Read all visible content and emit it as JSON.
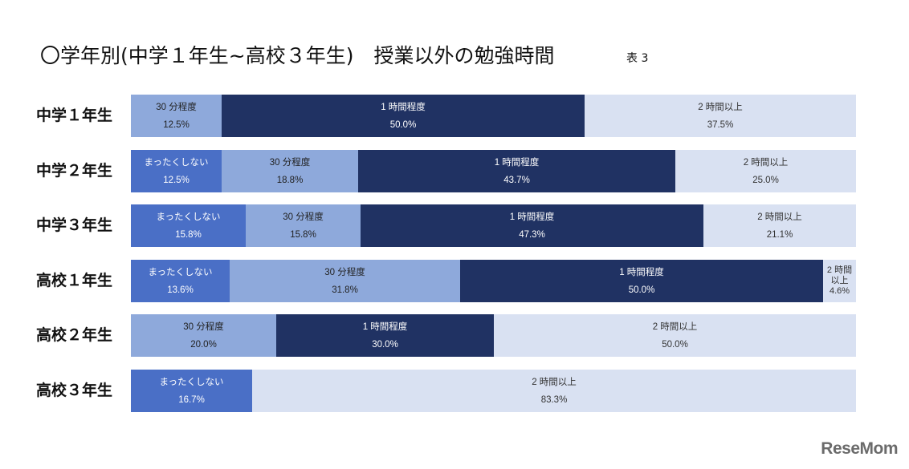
{
  "title": "〇学年別(中学１年生~高校３年生)　授業以外の勉強時間",
  "table_label": "表 3",
  "logo_text": "ReseMom",
  "colors": {
    "まったくしない": "#4a6fc6",
    "30 分程度": "#8ea9db",
    "1 時間程度": "#203263",
    "2 時間以上": "#d9e1f2"
  },
  "text_colors": {
    "まったくしない": "#ffffff",
    "30 分程度": "#222222",
    "1 時間程度": "#ffffff",
    "2 時間以上": "#333333"
  },
  "chart_data": {
    "type": "bar",
    "orientation": "horizontal",
    "stacked": true,
    "percent": true,
    "categories": [
      "中学１年生",
      "中学２年生",
      "中学３年生",
      "高校１年生",
      "高校２年生",
      "高校３年生"
    ],
    "rows": [
      {
        "label": "中学１年生",
        "segments": [
          {
            "name": "30 分程度",
            "value": 12.5,
            "display": "12.5%"
          },
          {
            "name": "1 時間程度",
            "value": 50.0,
            "display": "50.0%"
          },
          {
            "name": "2 時間以上",
            "value": 37.5,
            "display": "37.5%"
          }
        ]
      },
      {
        "label": "中学２年生",
        "segments": [
          {
            "name": "まったくしない",
            "value": 12.5,
            "display": "12.5%"
          },
          {
            "name": "30 分程度",
            "value": 18.8,
            "display": "18.8%"
          },
          {
            "name": "1 時間程度",
            "value": 43.7,
            "display": "43.7%"
          },
          {
            "name": "2 時間以上",
            "value": 25.0,
            "display": "25.0%"
          }
        ]
      },
      {
        "label": "中学３年生",
        "segments": [
          {
            "name": "まったくしない",
            "value": 15.8,
            "display": "15.8%"
          },
          {
            "name": "30 分程度",
            "value": 15.8,
            "display": "15.8%"
          },
          {
            "name": "1 時間程度",
            "value": 47.3,
            "display": "47.3%"
          },
          {
            "name": "2 時間以上",
            "value": 21.1,
            "display": "21.1%"
          }
        ]
      },
      {
        "label": "高校１年生",
        "segments": [
          {
            "name": "まったくしない",
            "value": 13.6,
            "display": "13.6%"
          },
          {
            "name": "30 分程度",
            "value": 31.8,
            "display": "31.8%"
          },
          {
            "name": "1 時間程度",
            "value": 50.0,
            "display": "50.0%"
          },
          {
            "name": "2 時間以上",
            "value": 4.6,
            "display": "4.6%",
            "name_lines": [
              "2 時間",
              "以上"
            ]
          }
        ]
      },
      {
        "label": "高校２年生",
        "segments": [
          {
            "name": "30 分程度",
            "value": 20.0,
            "display": "20.0%"
          },
          {
            "name": "1 時間程度",
            "value": 30.0,
            "display": "30.0%"
          },
          {
            "name": "2 時間以上",
            "value": 50.0,
            "display": "50.0%"
          }
        ]
      },
      {
        "label": "高校３年生",
        "segments": [
          {
            "name": "まったくしない",
            "value": 16.7,
            "display": "16.7%"
          },
          {
            "name": "2 時間以上",
            "value": 83.3,
            "display": "83.3%"
          }
        ]
      }
    ],
    "xlim": [
      0,
      100
    ]
  }
}
